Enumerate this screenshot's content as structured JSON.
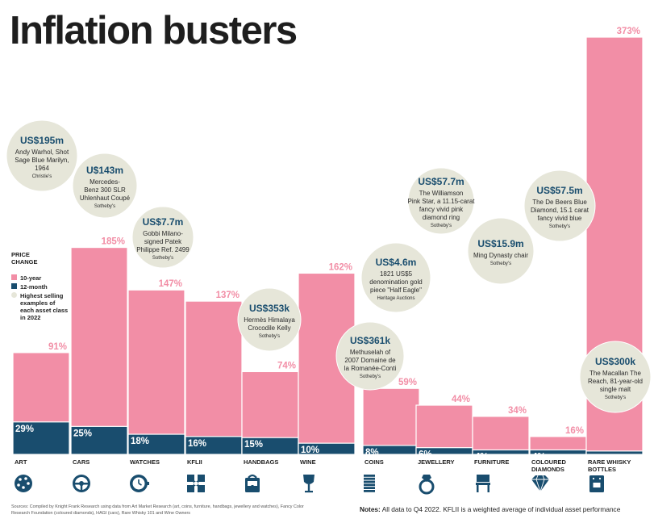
{
  "title": "Inflation busters",
  "legend": {
    "heading_line1": "PRICE",
    "heading_line2": "CHANGE",
    "ten_year": "10-year",
    "twelve_month": "12-month",
    "highest_lines": [
      "Highest selling",
      "examples of",
      "each asset class",
      "in 2022"
    ]
  },
  "colors": {
    "ten_year": "#f28ea6",
    "twelve_month": "#194d6e",
    "bubble": "#e6e6d9",
    "bubble_price": "#194d6e",
    "label_pink": "#f28ea6",
    "icon": "#194d6e"
  },
  "chart_data": {
    "type": "bar",
    "categories": [
      "ART",
      "CARS",
      "WATCHES",
      "KFLII",
      "HANDBAGS",
      "WINE",
      "COINS",
      "JEWELLERY",
      "FURNITURE",
      "COLOURED DIAMONDS",
      "RARE WHISKY BOTTLES"
    ],
    "series": [
      {
        "name": "10-year",
        "values": [
          91,
          185,
          147,
          137,
          74,
          162,
          59,
          44,
          34,
          16,
          373
        ],
        "labels": [
          "91%",
          "185%",
          "147%",
          "137%",
          "74%",
          "162%",
          "59%",
          "44%",
          "34%",
          "16%",
          "373%"
        ]
      },
      {
        "name": "12-month",
        "values": [
          29,
          25,
          18,
          16,
          15,
          10,
          8,
          6,
          4,
          4,
          3
        ],
        "labels": [
          "29%",
          "25%",
          "18%",
          "16%",
          "15%",
          "10%",
          "8%",
          "6%",
          "4%",
          "4%",
          "3%"
        ]
      }
    ],
    "category_lines": [
      [
        "ART"
      ],
      [
        "CARS"
      ],
      [
        "WATCHES"
      ],
      [
        "KFLII"
      ],
      [
        "HANDBAGS"
      ],
      [
        "WINE"
      ],
      [
        "COINS"
      ],
      [
        "JEWELLERY"
      ],
      [
        "FURNITURE"
      ],
      [
        "COLOURED",
        "DIAMONDS"
      ],
      [
        "RARE WHISKY",
        "BOTTLES"
      ]
    ],
    "icons": [
      "palette-icon",
      "steering-wheel-icon",
      "watch-icon",
      "kflii-logo-icon",
      "handbag-icon",
      "wine-glass-icon",
      "coins-icon",
      "ring-icon",
      "chair-icon",
      "diamond-icon",
      "whisky-bottle-icon"
    ],
    "ylim": [
      0,
      380
    ],
    "xlabel": "",
    "ylabel": "",
    "grid": false
  },
  "bubbles": [
    {
      "price": "US$195m",
      "lines": [
        "Andy Warhol, Shot",
        "Sage Blue Marilyn,",
        "1964"
      ],
      "source": "Christie's"
    },
    {
      "price": "U$143m",
      "lines": [
        "Mercedes-",
        "Benz 300 SLR",
        "Uhlenhaut Coupé"
      ],
      "source": "Sotheby's"
    },
    {
      "price": "US$7.7m",
      "lines": [
        "Gobbi Milano-",
        "signed Patek",
        "Philippe Ref. 2499"
      ],
      "source": "Sotheby's"
    },
    {
      "price": "US$353k",
      "lines": [
        "Hermès Himalaya",
        "Crocodile Kelly"
      ],
      "source": "Sotheby's"
    },
    {
      "price": "US$4.6m",
      "lines": [
        "1821 US$5",
        "denomination gold",
        "piece \"Half Eagle\""
      ],
      "source": "Heritage Auctions"
    },
    {
      "price": "US$361k",
      "lines": [
        "Methuselah of",
        "2007 Domaine de",
        "la Romanée-Conti"
      ],
      "source": "Sotheby's"
    },
    {
      "price": "US$57.7m",
      "lines": [
        "The Williamson",
        "Pink Star, a 11.15-carat",
        "fancy vivid pink",
        "diamond ring"
      ],
      "source": "Sotheby's"
    },
    {
      "price": "US$15.9m",
      "lines": [
        "Ming Dynasty chair"
      ],
      "source": "Sotheby's"
    },
    {
      "price": "US$57.5m",
      "lines": [
        "The De Beers Blue",
        "Diamond, 15.1 carat",
        "fancy vivid blue"
      ],
      "source": "Sotheby's"
    },
    {
      "price": "US$300k",
      "lines": [
        "The Macallan The",
        "Reach, 81-year-old",
        "single malt"
      ],
      "source": "Sotheby's"
    }
  ],
  "footer": {
    "sources": "Sources: Compiled by Knight Frank Research using data from Art Market Research (art, coins, furniture, handbags, jewellery and watches), Fancy Color Research Foundation (coloured diamonds), HAGI (cars), Rare Whisky 101 and Wine Owners",
    "notes_label": "Notes:",
    "notes_text": "All data to Q4 2022. KFLII is a weighted average of individual asset performance"
  }
}
